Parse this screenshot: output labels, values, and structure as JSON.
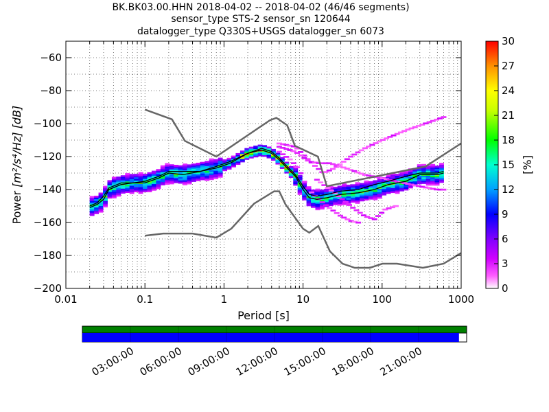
{
  "title": {
    "line1": "BK.BK03.00.HHN   2018-04-02 -- 2018-04-02  (46/46 segments)",
    "line2": "sensor_type STS-2 sensor_sn 120644",
    "line3": "datalogger_type Q330S+USGS datalogger_sn 6073"
  },
  "chart_data": [
    {
      "type": "heatmap",
      "xlabel": "Period [s]",
      "ylabel_prefix": "Power",
      "ylabel_units": "[m²/s⁴/Hz] [dB]",
      "x_scale": "log",
      "xlim": [
        0.01,
        1000
      ],
      "ylim": [
        -200,
        -50
      ],
      "x_ticks": [
        {
          "value": 0.01,
          "label": "0.01"
        },
        {
          "value": 0.1,
          "label": "0.1"
        },
        {
          "value": 1,
          "label": "1"
        },
        {
          "value": 10,
          "label": "10"
        },
        {
          "value": 100,
          "label": "100"
        },
        {
          "value": 1000,
          "label": "1000"
        }
      ],
      "y_ticks": [
        {
          "value": -60,
          "label": "−60"
        },
        {
          "value": -80,
          "label": "−80"
        },
        {
          "value": -100,
          "label": "−100"
        },
        {
          "value": -120,
          "label": "−120"
        },
        {
          "value": -140,
          "label": "−140"
        },
        {
          "value": -160,
          "label": "−160"
        },
        {
          "value": -180,
          "label": "−180"
        },
        {
          "value": -200,
          "label": "−200"
        }
      ],
      "colorbar": {
        "label": "[%]",
        "range": [
          0,
          30
        ],
        "ticks": [
          "0",
          "3",
          "6",
          "9",
          "12",
          "15",
          "18",
          "21",
          "24",
          "27",
          "30"
        ]
      },
      "nhnm": {
        "period": [
          0.1,
          0.22,
          0.32,
          0.8,
          3.8,
          4.6,
          6.3,
          7.9,
          15.4,
          20,
          354.8,
          1000
        ],
        "power": [
          -91.5,
          -97.4,
          -110.5,
          -120,
          -98,
          -96.5,
          -101,
          -113.5,
          -120,
          -138,
          -126,
          -112
        ]
      },
      "nlnm": {
        "period": [
          0.1,
          0.17,
          0.4,
          0.8,
          1.24,
          2.4,
          4.3,
          5,
          6,
          10,
          12,
          15.6,
          21.9,
          31.6,
          45,
          70,
          101,
          154,
          328,
          600,
          1000
        ],
        "power": [
          -168,
          -166.7,
          -166.7,
          -169.2,
          -163.7,
          -148.6,
          -141.1,
          -141.1,
          -149,
          -163.8,
          -166.2,
          -162.1,
          -177.5,
          -185,
          -187.5,
          -187.5,
          -185,
          -185,
          -187.5,
          -185,
          -178.5
        ]
      },
      "mode": {
        "period": [
          0.02,
          0.025,
          0.03,
          0.035,
          0.05,
          0.07,
          0.1,
          0.15,
          0.2,
          0.3,
          0.5,
          0.8,
          1.2,
          2,
          3,
          4,
          5,
          6,
          8,
          10,
          12,
          15,
          20,
          30,
          50,
          80,
          120,
          200,
          300,
          500,
          600
        ],
        "power": [
          -151,
          -149,
          -146,
          -140,
          -137,
          -136,
          -136,
          -133,
          -130,
          -131,
          -129,
          -127,
          -124,
          -118,
          -116,
          -118,
          -122,
          -126,
          -132,
          -140,
          -145,
          -146,
          -145,
          -143,
          -142,
          -140,
          -137,
          -135,
          -131,
          -131,
          -130
        ]
      },
      "mean": {
        "period": [
          0.02,
          0.025,
          0.03,
          0.035,
          0.05,
          0.07,
          0.1,
          0.15,
          0.2,
          0.3,
          0.5,
          0.8,
          1.2,
          2,
          3,
          4,
          5,
          6,
          8,
          10,
          12,
          15,
          20,
          30,
          50,
          80,
          120,
          200,
          300,
          500,
          600
        ],
        "power": [
          -150,
          -148,
          -144,
          -139,
          -136,
          -136,
          -135,
          -132,
          -129,
          -129,
          -129,
          -126,
          -123,
          -118,
          -115,
          -117,
          -121,
          -125,
          -131,
          -138,
          -143,
          -144,
          -143,
          -141,
          -140,
          -137,
          -135,
          -132,
          -130,
          -130,
          -129
        ]
      },
      "outliers": [
        {
          "period": [
            5,
            8,
            13,
            18,
            25,
            40,
            60,
            100,
            200,
            400,
            600
          ],
          "power": [
            -112,
            -114,
            -124,
            -130,
            -127,
            -120,
            -115,
            -110,
            -104,
            -99,
            -96
          ]
        },
        {
          "period": [
            5,
            8,
            12,
            16,
            22,
            30,
            40,
            60,
            100,
            150,
            300,
            500,
            600
          ],
          "power": [
            -114,
            -117,
            -123,
            -124,
            -124,
            -126,
            -128,
            -131,
            -133,
            -135,
            -138,
            -140,
            -140
          ]
        },
        {
          "period": [
            5,
            7,
            9,
            11,
            13,
            16,
            20,
            30,
            40,
            50
          ],
          "power": [
            -117,
            -122,
            -128,
            -138,
            -142,
            -146,
            -150,
            -156,
            -159,
            -160
          ]
        },
        {
          "period": [
            15,
            25,
            40,
            60,
            80,
            110,
            150
          ],
          "power": [
            -134,
            -142,
            -150,
            -156,
            -158,
            -152,
            -150
          ]
        }
      ]
    },
    {
      "type": "timeline",
      "tick_labels": [
        "03:00:00",
        "06:00:00",
        "09:00:00",
        "12:00:00",
        "15:00:00",
        "18:00:00",
        "21:00:00"
      ],
      "coverage_fraction": 0.98,
      "colors": {
        "data": "#008000",
        "used": "#0000ff"
      }
    }
  ]
}
